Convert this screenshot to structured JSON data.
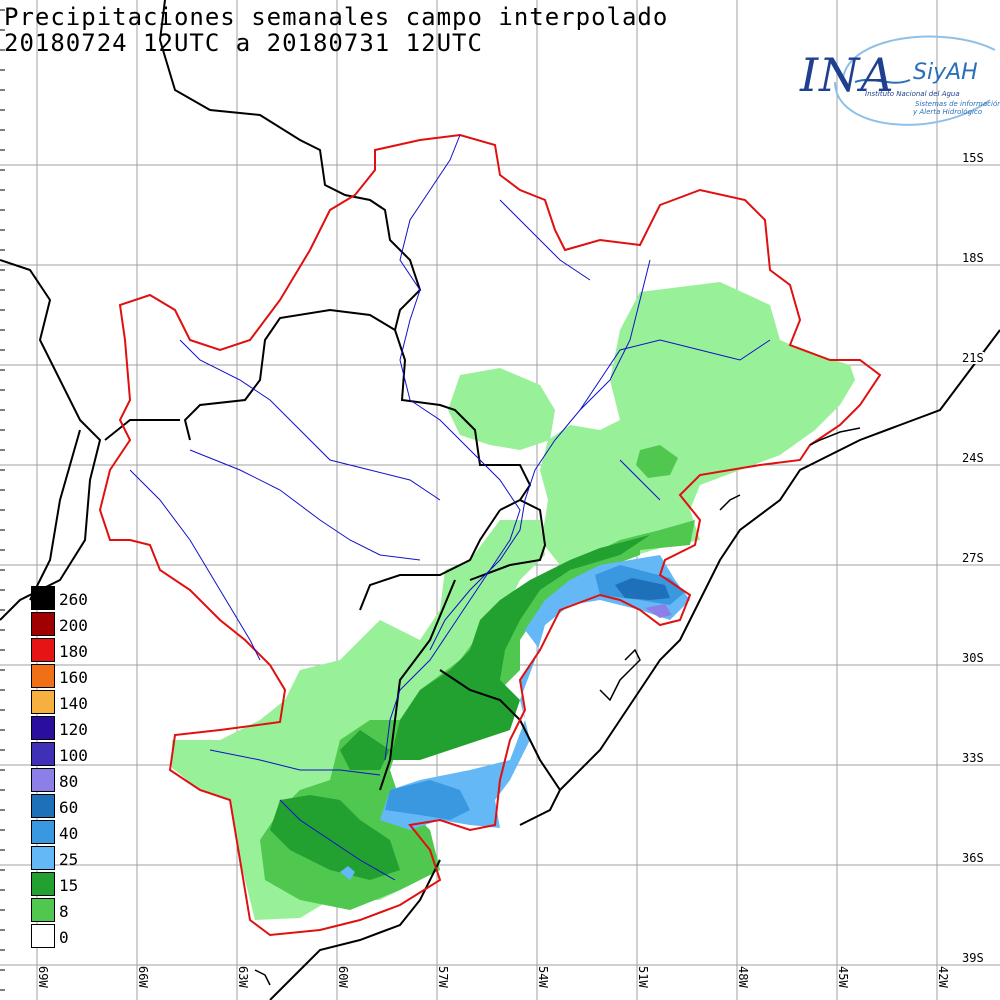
{
  "title": {
    "line1": "Precipitaciones semanales campo interpolado",
    "line2": "20180724 12UTC a 20180731 12UTC"
  },
  "logo": {
    "ina": "INA",
    "siyah": "SiyAH",
    "subtitle": "Instituto Nacional del Agua",
    "system_line1": "Sistemas de información",
    "system_line2": "y Alerta Hidrológico"
  },
  "legend": {
    "items": [
      {
        "label": "260",
        "color": "#000000"
      },
      {
        "label": "200",
        "color": "#a00000"
      },
      {
        "label": "180",
        "color": "#e61414"
      },
      {
        "label": "160",
        "color": "#f07018"
      },
      {
        "label": "140",
        "color": "#f5b040"
      },
      {
        "label": "120",
        "color": "#2a0f9e"
      },
      {
        "label": "100",
        "color": "#4030b8"
      },
      {
        "label": "80",
        "color": "#8c80e8"
      },
      {
        "label": "60",
        "color": "#1e70b8"
      },
      {
        "label": "40",
        "color": "#3a98e0"
      },
      {
        "label": "25",
        "color": "#64b8f5"
      },
      {
        "label": "15",
        "color": "#22a030"
      },
      {
        "label": "8",
        "color": "#50c850"
      },
      {
        "label": "0",
        "color": "#ffffff"
      }
    ]
  },
  "axes": {
    "latitudes": [
      "15S",
      "18S",
      "21S",
      "24S",
      "27S",
      "30S",
      "33S",
      "36S",
      "39S"
    ],
    "longitudes": [
      "69W",
      "66W",
      "63W",
      "60W",
      "57W",
      "54W",
      "51W",
      "48W",
      "45W",
      "42W"
    ]
  },
  "colors": {
    "basin_outline": "#e01010",
    "rivers": "#1010c8",
    "borders": "#000000",
    "grid": "#a0a0a0",
    "light_green": "#98f098"
  }
}
